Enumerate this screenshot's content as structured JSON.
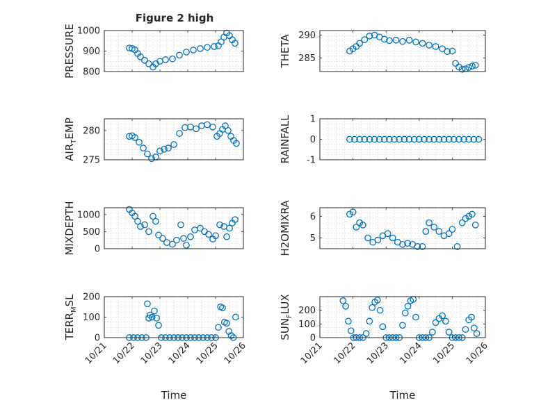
{
  "colors": {
    "marker": "#0072BD",
    "axis": "#262626",
    "grid": "#c8c8c8"
  },
  "chart_data": [
    {
      "type": "scatter",
      "title": "Figure 2 high",
      "ylabel": "PRESSURE",
      "ylim": [
        800,
        1000
      ],
      "yticks": [
        800,
        900,
        1000
      ],
      "xlim": [
        0,
        5
      ],
      "xtick_labels": [],
      "xlabel": "",
      "grid": true,
      "x": [
        0.9,
        1.0,
        1.1,
        1.2,
        1.3,
        1.45,
        1.6,
        1.75,
        1.85,
        2.0,
        2.2,
        2.45,
        2.7,
        2.95,
        3.2,
        3.45,
        3.7,
        3.95,
        4.1,
        4.2,
        4.3,
        4.4,
        4.5,
        4.6,
        4.7
      ],
      "y": [
        915,
        912,
        906,
        888,
        872,
        855,
        838,
        822,
        838,
        850,
        858,
        862,
        880,
        895,
        905,
        912,
        918,
        922,
        926,
        945,
        968,
        988,
        975,
        955,
        938
      ]
    },
    {
      "type": "scatter",
      "title": "",
      "ylabel": "THETA",
      "ylim": [
        282,
        291
      ],
      "yticks": [
        285,
        290
      ],
      "xlim": [
        0,
        5
      ],
      "xtick_labels": [],
      "xlabel": "",
      "grid": true,
      "x": [
        0.9,
        1.0,
        1.1,
        1.2,
        1.35,
        1.5,
        1.65,
        1.8,
        1.95,
        2.1,
        2.3,
        2.5,
        2.7,
        2.9,
        3.1,
        3.3,
        3.5,
        3.7,
        3.85,
        4.0,
        4.1,
        4.2,
        4.3,
        4.4,
        4.5,
        4.6,
        4.7
      ],
      "y": [
        286.5,
        287.0,
        287.5,
        288.2,
        289.0,
        289.8,
        290.0,
        289.6,
        289.1,
        288.8,
        288.9,
        288.6,
        288.9,
        288.5,
        288.2,
        287.8,
        287.5,
        287.0,
        286.4,
        286.5,
        283.8,
        283.0,
        282.5,
        282.6,
        282.9,
        283.2,
        283.4
      ]
    },
    {
      "type": "scatter",
      "title": "",
      "ylabel": "AIR_TEMP",
      "ylim": [
        275,
        282
      ],
      "yticks": [
        275,
        280
      ],
      "xlim": [
        0,
        5
      ],
      "xtick_labels": [],
      "xlabel": "",
      "grid": true,
      "x": [
        0.9,
        1.0,
        1.1,
        1.25,
        1.4,
        1.55,
        1.7,
        1.85,
        2.0,
        2.15,
        2.3,
        2.5,
        2.7,
        2.9,
        3.1,
        3.3,
        3.5,
        3.7,
        3.9,
        4.05,
        4.15,
        4.25,
        4.35,
        4.45,
        4.55,
        4.65,
        4.75
      ],
      "y": [
        279.0,
        279.1,
        278.8,
        278.0,
        277.0,
        276.0,
        275.2,
        275.5,
        276.5,
        276.8,
        277.0,
        277.6,
        279.5,
        280.5,
        280.6,
        280.3,
        280.8,
        281.0,
        280.6,
        279.0,
        279.5,
        280.2,
        280.8,
        280.0,
        279.0,
        278.3,
        277.8
      ]
    },
    {
      "type": "scatter",
      "title": "",
      "ylabel": "RAINFALL",
      "ylim": [
        -1,
        1
      ],
      "yticks": [
        -1,
        0,
        1
      ],
      "xlim": [
        0,
        5
      ],
      "xtick_labels": [],
      "xlabel": "",
      "grid": true,
      "x": [
        0.9,
        1.05,
        1.2,
        1.35,
        1.5,
        1.65,
        1.8,
        1.95,
        2.1,
        2.25,
        2.4,
        2.55,
        2.7,
        2.85,
        3.0,
        3.15,
        3.3,
        3.45,
        3.6,
        3.75,
        3.9,
        4.05,
        4.2,
        4.35,
        4.5,
        4.65,
        4.8
      ],
      "y": [
        0,
        0,
        0,
        0,
        0,
        0,
        0,
        0,
        0,
        0,
        0,
        0,
        0,
        0,
        0,
        0,
        0,
        0,
        0,
        0,
        0,
        0,
        0,
        0,
        0,
        0,
        0
      ]
    },
    {
      "type": "scatter",
      "title": "",
      "ylabel": "MIXDEPTH",
      "ylim": [
        0,
        1200
      ],
      "yticks": [
        0,
        500,
        1000
      ],
      "xlim": [
        0,
        5
      ],
      "xtick_labels": [],
      "xlabel": "",
      "grid": true,
      "x": [
        0.9,
        1.0,
        1.1,
        1.2,
        1.3,
        1.45,
        1.6,
        1.75,
        1.85,
        1.95,
        2.1,
        2.25,
        2.45,
        2.6,
        2.75,
        2.85,
        2.95,
        3.1,
        3.25,
        3.45,
        3.6,
        3.75,
        3.9,
        4.0,
        4.15,
        4.3,
        4.4,
        4.5,
        4.6,
        4.7
      ],
      "y": [
        1150,
        1050,
        950,
        800,
        650,
        700,
        500,
        950,
        800,
        400,
        300,
        180,
        130,
        250,
        700,
        300,
        100,
        350,
        550,
        600,
        500,
        420,
        280,
        380,
        700,
        650,
        350,
        600,
        750,
        850
      ]
    },
    {
      "type": "scatter",
      "title": "",
      "ylabel": "H2OMIXRA",
      "ylim": [
        4.5,
        6.4
      ],
      "yticks": [
        5,
        6
      ],
      "xlim": [
        0,
        5
      ],
      "xtick_labels": [],
      "xlabel": "",
      "grid": true,
      "x": [
        0.9,
        1.0,
        1.1,
        1.2,
        1.3,
        1.45,
        1.6,
        1.75,
        1.9,
        2.05,
        2.2,
        2.35,
        2.5,
        2.65,
        2.8,
        2.95,
        3.1,
        3.2,
        3.3,
        3.45,
        3.6,
        3.75,
        3.9,
        4.0,
        4.15,
        4.3,
        4.4,
        4.5,
        4.6,
        4.7
      ],
      "y": [
        6.1,
        6.2,
        5.5,
        5.7,
        5.6,
        5.0,
        4.8,
        4.9,
        5.1,
        5.2,
        5.0,
        4.8,
        4.7,
        4.75,
        4.7,
        4.6,
        4.6,
        5.3,
        5.7,
        5.5,
        5.3,
        5.1,
        5.2,
        5.4,
        4.6,
        5.7,
        5.9,
        6.0,
        6.1,
        5.6
      ]
    },
    {
      "type": "scatter",
      "title": "",
      "ylabel": "TERR_MSL",
      "ylim": [
        0,
        200
      ],
      "yticks": [
        0,
        100,
        200
      ],
      "xlim": [
        0,
        5
      ],
      "xtick_labels": [
        "10/21",
        "10/22",
        "10/23",
        "10/24",
        "10/25",
        "10/26"
      ],
      "xlabel": "Time",
      "grid": true,
      "x": [
        0.9,
        1.05,
        1.2,
        1.35,
        1.5,
        1.55,
        1.6,
        1.65,
        1.72,
        1.8,
        1.88,
        1.95,
        2.05,
        2.2,
        2.35,
        2.5,
        2.65,
        2.8,
        2.95,
        3.1,
        3.25,
        3.4,
        3.55,
        3.7,
        3.85,
        4.0,
        4.1,
        4.18,
        4.25,
        4.32,
        4.4,
        4.48,
        4.56,
        4.64,
        4.72
      ],
      "y": [
        0,
        0,
        0,
        0,
        0,
        165,
        95,
        110,
        100,
        130,
        95,
        60,
        0,
        0,
        0,
        0,
        0,
        0,
        0,
        0,
        0,
        0,
        0,
        0,
        0,
        0,
        50,
        150,
        145,
        75,
        70,
        30,
        10,
        0,
        100
      ]
    },
    {
      "type": "scatter",
      "title": "",
      "ylabel": "SUN_FLUX",
      "ylim": [
        0,
        300
      ],
      "yticks": [
        0,
        100,
        200
      ],
      "xlim": [
        0,
        5
      ],
      "xtick_labels": [
        "10/21",
        "10/22",
        "10/23",
        "10/24",
        "10/25",
        "10/26"
      ],
      "xlabel": "Time",
      "grid": true,
      "x": [
        0.7,
        0.78,
        0.86,
        0.94,
        1.02,
        1.1,
        1.2,
        1.3,
        1.4,
        1.5,
        1.58,
        1.66,
        1.74,
        1.82,
        1.9,
        2.0,
        2.1,
        2.2,
        2.3,
        2.4,
        2.5,
        2.58,
        2.66,
        2.74,
        2.82,
        2.9,
        3.0,
        3.1,
        3.2,
        3.3,
        3.4,
        3.5,
        3.6,
        3.7,
        3.8,
        3.9,
        4.0,
        4.1,
        4.2,
        4.3,
        4.4,
        4.5,
        4.58,
        4.66,
        4.74
      ],
      "y": [
        270,
        230,
        120,
        50,
        0,
        0,
        0,
        0,
        30,
        120,
        220,
        260,
        275,
        200,
        80,
        0,
        0,
        0,
        0,
        0,
        90,
        180,
        230,
        270,
        280,
        150,
        0,
        0,
        0,
        0,
        40,
        110,
        140,
        160,
        120,
        40,
        0,
        0,
        0,
        0,
        60,
        130,
        150,
        70,
        30
      ]
    }
  ]
}
